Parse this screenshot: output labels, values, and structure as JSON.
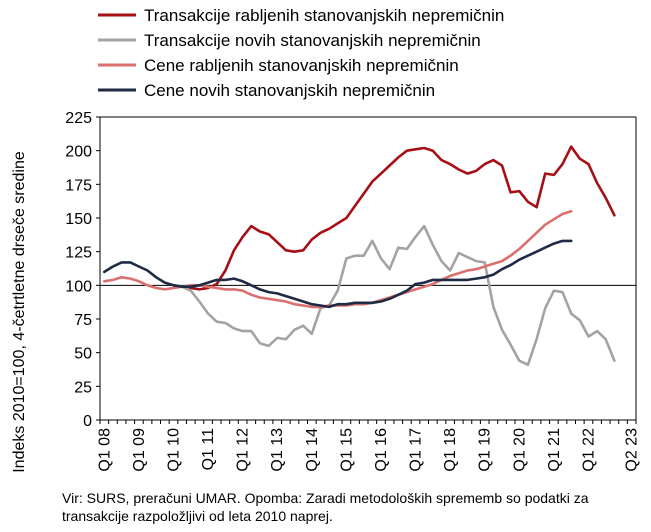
{
  "chart_data": {
    "type": "line",
    "ylabel": "Indeks 2010=100, 4-četrtletne drseče sredine",
    "ylim": [
      0,
      225
    ],
    "yticks": [
      0,
      25,
      50,
      75,
      100,
      125,
      150,
      175,
      200,
      225
    ],
    "reference_line": 100,
    "grid": false,
    "legend_position": "top",
    "x_start": "2008 Q1",
    "x_end": "2023 Q2",
    "xtick_labels": [
      "Q1 08",
      "Q1 09",
      "Q1 10",
      "Q1 11",
      "Q1 12",
      "Q1 13",
      "Q1 14",
      "Q1 15",
      "Q1 16",
      "Q1 17",
      "Q1 18",
      "Q1 19",
      "Q1 20",
      "Q1 21",
      "Q1 22",
      "Q2 23"
    ],
    "series": [
      {
        "name": "Transakcije rabljenih stanovanjskih nepremičnin",
        "color": "#a50f15",
        "start": "2010 Q1",
        "values": [
          100,
          99,
          98,
          97,
          98,
          101,
          111,
          126,
          136,
          144,
          140,
          138,
          132,
          126,
          125,
          126,
          134,
          139,
          142,
          146,
          150,
          159,
          168,
          177,
          183,
          189,
          195,
          200,
          201,
          202,
          200,
          193,
          190,
          186,
          183,
          185,
          190,
          193,
          189,
          169,
          170,
          162,
          158,
          183,
          182,
          190,
          203,
          194,
          190,
          176,
          165,
          152
        ]
      },
      {
        "name": "Transakcije novih stanovanjskih nepremičnin",
        "color": "#a3a3a3",
        "start": "2010 Q1",
        "values": [
          100,
          99,
          96,
          88,
          79,
          73,
          72,
          68,
          66,
          66,
          57,
          55,
          61,
          60,
          67,
          70,
          64,
          83,
          85,
          96,
          120,
          122,
          122,
          133,
          120,
          112,
          128,
          127,
          136,
          144,
          130,
          118,
          111,
          124,
          121,
          118,
          117,
          84,
          67,
          56,
          44,
          41,
          60,
          83,
          96,
          95,
          79,
          74,
          62,
          66,
          60,
          44
        ]
      },
      {
        "name": "Cene rabljenih stanovanjskih nepremičnin",
        "color": "#d9706e",
        "start": "2008 Q1",
        "values": [
          103,
          104,
          106,
          105,
          103,
          100,
          98,
          97,
          98,
          99,
          100,
          100,
          99,
          98,
          97,
          97,
          96,
          93,
          91,
          90,
          89,
          88,
          86,
          85,
          84,
          84,
          85,
          85,
          85,
          86,
          86,
          87,
          89,
          91,
          93,
          95,
          97,
          99,
          101,
          104,
          107,
          109,
          111,
          112,
          114,
          116,
          118,
          122,
          127,
          133,
          139,
          145,
          149,
          153,
          155
        ]
      },
      {
        "name": "Cene novih stanovanjskih nepremičnin",
        "color": "#1f2a44",
        "start": "2008 Q1",
        "values": [
          110,
          114,
          117,
          117,
          114,
          111,
          106,
          102,
          100,
          99,
          99,
          100,
          102,
          104,
          104,
          105,
          103,
          100,
          97,
          95,
          94,
          92,
          90,
          88,
          86,
          85,
          84,
          86,
          86,
          87,
          87,
          87,
          88,
          90,
          93,
          96,
          101,
          102,
          104,
          104,
          104,
          104,
          104,
          105,
          106,
          108,
          112,
          115,
          119,
          122,
          125,
          128,
          131,
          133,
          133
        ]
      }
    ]
  },
  "source_note": "Vir: SURS, preračuni UMAR. Opomba: Zaradi metodoloških sprememb so podatki za transakcije razpoložljivi od leta 2010 naprej."
}
